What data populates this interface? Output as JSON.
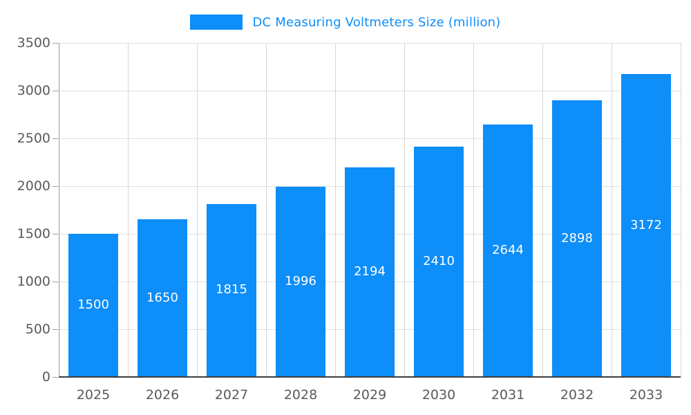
{
  "chart_data": {
    "type": "bar",
    "title": "DC Measuring Voltmeters Size (million)",
    "categories": [
      "2025",
      "2026",
      "2027",
      "2028",
      "2029",
      "2030",
      "2031",
      "2032",
      "2033"
    ],
    "values": [
      1500,
      1650,
      1815,
      1996,
      2194,
      2410,
      2644,
      2898,
      3172
    ],
    "xlabel": "",
    "ylabel": "",
    "ylim": [
      0,
      3500
    ],
    "yticks": [
      0,
      500,
      1000,
      1500,
      2000,
      2500,
      3000,
      3500
    ],
    "grid": "on",
    "legend_position": "top-center",
    "bar_color": "#0D8EF8",
    "value_label_color": "#FFFFFF",
    "axis_text_color": "#595959",
    "title_color": "#0D8EF8"
  }
}
